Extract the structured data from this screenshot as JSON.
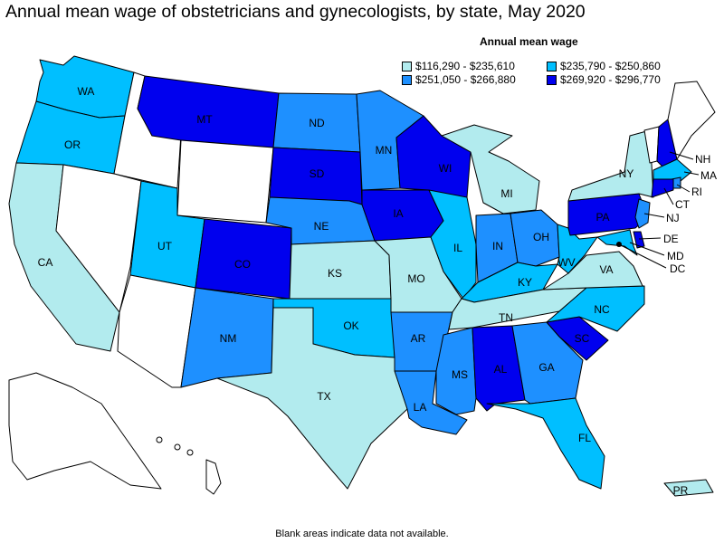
{
  "title": "Annual mean wage of obstetricians and gynecologists, by state, May 2020",
  "legend": {
    "title": "Annual mean wage",
    "items": [
      {
        "label": "$116,290 - $235,610",
        "color": "#b2ebee"
      },
      {
        "label": "$235,790 - $250,860",
        "color": "#00bfff"
      },
      {
        "label": "$251,050 - $266,880",
        "color": "#1e90ff"
      },
      {
        "label": "$269,920 - $296,770",
        "color": "#0000ee"
      }
    ]
  },
  "footnote": "Blank areas indicate data not available.",
  "colors": {
    "blank": "#ffffff",
    "border": "#000000"
  },
  "states": {
    "WA": {
      "label": "WA",
      "tier": 2
    },
    "OR": {
      "label": "OR",
      "tier": 2
    },
    "CA": {
      "label": "CA",
      "tier": 1
    },
    "ID": {
      "tier": 0
    },
    "NV": {
      "tier": 0
    },
    "MT": {
      "label": "MT",
      "tier": 4
    },
    "WY": {
      "tier": 0
    },
    "UT": {
      "label": "UT",
      "tier": 2
    },
    "AZ": {
      "tier": 0
    },
    "CO": {
      "label": "CO",
      "tier": 4
    },
    "NM": {
      "label": "NM",
      "tier": 3
    },
    "ND": {
      "label": "ND",
      "tier": 3
    },
    "SD": {
      "label": "SD",
      "tier": 4
    },
    "NE": {
      "label": "NE",
      "tier": 3
    },
    "KS": {
      "label": "KS",
      "tier": 1
    },
    "OK": {
      "label": "OK",
      "tier": 2
    },
    "TX": {
      "label": "TX",
      "tier": 1
    },
    "MN": {
      "label": "MN",
      "tier": 3
    },
    "IA": {
      "label": "IA",
      "tier": 4
    },
    "MO": {
      "label": "MO",
      "tier": 1
    },
    "AR": {
      "label": "AR",
      "tier": 3
    },
    "LA": {
      "label": "LA",
      "tier": 3
    },
    "WI": {
      "label": "WI",
      "tier": 4
    },
    "IL": {
      "label": "IL",
      "tier": 2
    },
    "MI": {
      "label": "MI",
      "tier": 1
    },
    "IN": {
      "label": "IN",
      "tier": 3
    },
    "OH": {
      "label": "OH",
      "tier": 3
    },
    "KY": {
      "label": "KY",
      "tier": 2
    },
    "TN": {
      "label": "TN",
      "tier": 1
    },
    "MS": {
      "label": "MS",
      "tier": 3
    },
    "AL": {
      "label": "AL",
      "tier": 4
    },
    "GA": {
      "label": "GA",
      "tier": 3
    },
    "FL": {
      "label": "FL",
      "tier": 2
    },
    "SC": {
      "label": "SC",
      "tier": 4
    },
    "NC": {
      "label": "NC",
      "tier": 2
    },
    "VA": {
      "label": "VA",
      "tier": 1
    },
    "WV": {
      "label": "WV",
      "tier": 2
    },
    "PA": {
      "label": "PA",
      "tier": 4
    },
    "NY": {
      "label": "NY",
      "tier": 1
    },
    "VT": {
      "tier": 0
    },
    "NH": {
      "label": "NH",
      "tier": 4
    },
    "ME": {
      "tier": 0
    },
    "MA": {
      "label": "MA",
      "tier": 2
    },
    "RI": {
      "label": "RI",
      "tier": 3
    },
    "CT": {
      "label": "CT",
      "tier": 4
    },
    "NJ": {
      "label": "NJ",
      "tier": 3
    },
    "DE": {
      "label": "DE",
      "tier": 4
    },
    "MD": {
      "label": "MD",
      "tier": 2
    },
    "DC": {
      "label": "DC",
      "tier": 0
    },
    "AK": {
      "tier": 0
    },
    "HI": {
      "tier": 0
    },
    "PR": {
      "label": "PR",
      "tier": 1
    }
  }
}
